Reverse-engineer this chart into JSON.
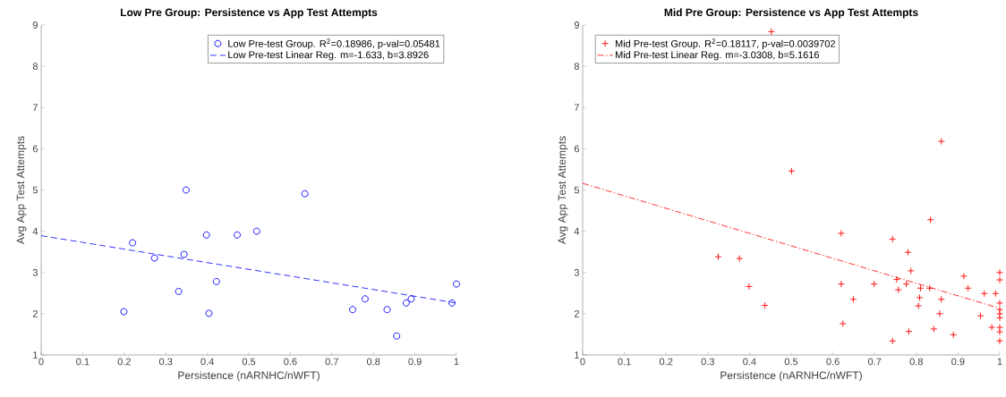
{
  "chart_data": [
    {
      "type": "scatter",
      "title": "Low Pre Group: Persistence vs App Test Attempts",
      "xlabel": "Persistence (nARNHC/nWFT)",
      "ylabel": "Avg App Test Attempts",
      "xlim": [
        0,
        1
      ],
      "ylim": [
        1,
        9
      ],
      "xticks": [
        0,
        0.1,
        0.2,
        0.3,
        0.4,
        0.5,
        0.6,
        0.7,
        0.8,
        0.9,
        1
      ],
      "yticks": [
        1,
        2,
        3,
        4,
        5,
        6,
        7,
        8,
        9
      ],
      "legend": "top right",
      "series": [
        {
          "name": "Low Pre-test Group. R$^{2}$=0.18986, p-val=0.05481",
          "type": "scatter",
          "marker": "circle",
          "color": "#0000ff",
          "x": [
            0.199,
            0.22,
            0.273,
            0.331,
            0.344,
            0.349,
            0.398,
            0.404,
            0.422,
            0.472,
            0.519,
            0.635,
            0.75,
            0.78,
            0.833,
            0.856,
            0.879,
            0.891,
            0.989,
            1.0
          ],
          "values": [
            2.05,
            3.72,
            3.35,
            2.54,
            3.44,
            5.0,
            3.91,
            2.01,
            2.78,
            3.91,
            4.0,
            4.91,
            2.1,
            2.36,
            2.1,
            1.46,
            2.26,
            2.36,
            2.26,
            2.72
          ]
        },
        {
          "name": "Low Pre-test Linear Reg. m=-1.633, b=3.8926",
          "type": "line",
          "marker": "none",
          "line_style": "dashed",
          "color": "#0000ff",
          "x": [
            0,
            1
          ],
          "values": [
            3.8926,
            2.2596
          ]
        }
      ]
    },
    {
      "type": "scatter",
      "title": "Mid Pre Group: Persistence vs App Test Attempts",
      "xlabel": "Persistence (nARNHC/nWFT)",
      "ylabel": "Avg App Test Attempts",
      "xlim": [
        0,
        1
      ],
      "ylim": [
        1,
        9
      ],
      "xticks": [
        0,
        0.1,
        0.2,
        0.3,
        0.4,
        0.5,
        0.6,
        0.7,
        0.8,
        0.9,
        1
      ],
      "yticks": [
        1,
        2,
        3,
        4,
        5,
        6,
        7,
        8,
        9
      ],
      "legend": "top left",
      "series": [
        {
          "name": "Mid Pre-test Group. R$^{2}$=0.18117, p-val=0.0039702",
          "type": "scatter",
          "marker": "cross",
          "color": "#ff0000",
          "x": [
            0.325,
            0.376,
            0.399,
            0.437,
            0.4525,
            0.501,
            0.62,
            0.62,
            0.624,
            0.649,
            0.699,
            0.743,
            0.743,
            0.753,
            0.757,
            0.776,
            0.78,
            0.782,
            0.787,
            0.805,
            0.808,
            0.81,
            0.832,
            0.834,
            0.842,
            0.856,
            0.86,
            0.86,
            0.889,
            0.914,
            0.924,
            0.954,
            0.963,
            0.981,
            0.99,
            1,
            1,
            1,
            1,
            1,
            1,
            1,
            1,
            1
          ],
          "values": [
            3.38,
            3.34,
            2.66,
            2.2,
            8.84,
            5.46,
            3.95,
            2.72,
            1.76,
            2.35,
            2.72,
            3.81,
            1.34,
            2.83,
            2.58,
            2.72,
            3.49,
            1.57,
            3.04,
            2.19,
            2.39,
            2.62,
            2.62,
            4.28,
            1.63,
            2.0,
            2.35,
            6.18,
            1.49,
            2.91,
            2.62,
            1.95,
            2.49,
            1.67,
            2.49,
            3.0,
            2.82,
            2.26,
            2.1,
            2.0,
            1.9,
            1.67,
            1.56,
            1.34
          ]
        },
        {
          "name": "Mid Pre-test Linear Reg. m=-3.0308, b=5.1616",
          "type": "line",
          "marker": "none",
          "line_style": "dashdot",
          "color": "#ff0000",
          "x": [
            0,
            1
          ],
          "values": [
            5.1616,
            2.1308
          ]
        }
      ]
    }
  ]
}
